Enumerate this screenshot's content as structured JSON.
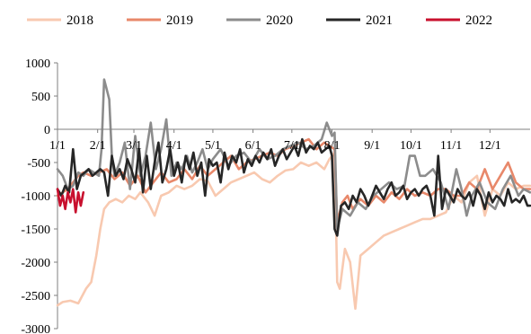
{
  "chart_data": {
    "type": "line",
    "title": "",
    "xlabel": "",
    "ylabel": "",
    "ylim": [
      -3000,
      1000
    ],
    "yticks": [
      1000,
      500,
      0,
      -500,
      -1000,
      -1500,
      -2000,
      -2500,
      -3000
    ],
    "xlim": [
      0,
      365
    ],
    "xticks": [
      {
        "day": 0,
        "label": "1/1"
      },
      {
        "day": 31,
        "label": "2/1"
      },
      {
        "day": 59,
        "label": "3/1"
      },
      {
        "day": 90,
        "label": "4/1"
      },
      {
        "day": 120,
        "label": "5/1"
      },
      {
        "day": 151,
        "label": "6/1"
      },
      {
        "day": 181,
        "label": "7/1"
      },
      {
        "day": 212,
        "label": "8/1"
      },
      {
        "day": 243,
        "label": "9/1"
      },
      {
        "day": 273,
        "label": "10/1"
      },
      {
        "day": 304,
        "label": "11/1"
      },
      {
        "day": 334,
        "label": "12/1"
      }
    ],
    "legend_position": "top",
    "grid": false,
    "x_unit": "day of year",
    "series": [
      {
        "name": "2018",
        "color": "#f8c9b0",
        "x": [
          0,
          4,
          10,
          16,
          22,
          26,
          30,
          33,
          36,
          40,
          45,
          50,
          55,
          60,
          64,
          70,
          75,
          80,
          86,
          92,
          98,
          104,
          110,
          116,
          122,
          128,
          134,
          140,
          146,
          152,
          158,
          164,
          170,
          176,
          182,
          188,
          194,
          200,
          206,
          210,
          214,
          216,
          218,
          222,
          226,
          230,
          234,
          240,
          246,
          252,
          258,
          264,
          270,
          276,
          282,
          288,
          294,
          300,
          306,
          312,
          318,
          324,
          330,
          336,
          342,
          348,
          354,
          360,
          365
        ],
        "y": [
          -2650,
          -2600,
          -2580,
          -2620,
          -2400,
          -2300,
          -1900,
          -1500,
          -1200,
          -1100,
          -1050,
          -1100,
          -1000,
          -1050,
          -950,
          -1100,
          -1300,
          -1000,
          -950,
          -850,
          -900,
          -850,
          -750,
          -780,
          -1000,
          -900,
          -800,
          -750,
          -700,
          -650,
          -750,
          -800,
          -700,
          -620,
          -600,
          -500,
          -550,
          -500,
          -600,
          -450,
          -350,
          -2300,
          -2400,
          -1800,
          -2000,
          -2700,
          -1900,
          -1800,
          -1700,
          -1600,
          -1550,
          -1500,
          -1450,
          -1400,
          -1350,
          -1350,
          -1300,
          -1250,
          -1000,
          -1100,
          -800,
          -700,
          -1300,
          -900,
          -1000,
          -800,
          -900,
          -850,
          -850
        ]
      },
      {
        "name": "2019",
        "color": "#e8886a",
        "x": [
          0,
          4,
          8,
          12,
          16,
          20,
          26,
          32,
          38,
          44,
          50,
          56,
          62,
          68,
          74,
          80,
          86,
          92,
          98,
          104,
          110,
          116,
          122,
          128,
          134,
          140,
          146,
          152,
          158,
          164,
          170,
          176,
          182,
          188,
          194,
          200,
          206,
          210,
          214,
          216,
          220,
          224,
          228,
          234,
          240,
          246,
          252,
          258,
          264,
          270,
          276,
          282,
          288,
          294,
          300,
          306,
          312,
          318,
          324,
          330,
          336,
          342,
          348,
          354,
          360,
          365
        ],
        "y": [
          -1000,
          -950,
          -900,
          -800,
          -700,
          -650,
          -700,
          -650,
          -600,
          -750,
          -650,
          -850,
          -700,
          -950,
          -800,
          -650,
          -800,
          -750,
          -600,
          -750,
          -550,
          -700,
          -600,
          -500,
          -400,
          -600,
          -500,
          -450,
          -400,
          -350,
          -400,
          -300,
          -250,
          -200,
          -150,
          -300,
          -200,
          -250,
          -300,
          -1400,
          -1100,
          -1000,
          -1200,
          -1050,
          -1150,
          -1000,
          -1100,
          -950,
          -1050,
          -900,
          -1000,
          -950,
          -1000,
          -900,
          -900,
          -1000,
          -1000,
          -800,
          -900,
          -600,
          -900,
          -700,
          -500,
          -800,
          -900,
          -900
        ]
      },
      {
        "name": "2020",
        "color": "#8c8c8c",
        "x": [
          0,
          4,
          8,
          12,
          16,
          20,
          24,
          28,
          32,
          34,
          36,
          38,
          40,
          42,
          44,
          48,
          52,
          56,
          60,
          64,
          68,
          72,
          76,
          80,
          84,
          88,
          92,
          96,
          100,
          104,
          108,
          112,
          116,
          120,
          126,
          132,
          138,
          144,
          150,
          156,
          162,
          168,
          174,
          180,
          186,
          192,
          198,
          204,
          208,
          212,
          214,
          216,
          220,
          226,
          232,
          238,
          244,
          250,
          256,
          262,
          268,
          272,
          276,
          280,
          284,
          290,
          296,
          302,
          308,
          312,
          316,
          320,
          326,
          332,
          338,
          344,
          350,
          356,
          360,
          365
        ],
        "y": [
          -600,
          -700,
          -900,
          -850,
          -650,
          -700,
          -600,
          -650,
          -700,
          -300,
          750,
          600,
          450,
          -400,
          -700,
          -500,
          -200,
          -900,
          -100,
          -700,
          -400,
          100,
          -600,
          -300,
          150,
          -700,
          -500,
          -600,
          -400,
          -650,
          -500,
          -300,
          -600,
          -450,
          -300,
          -550,
          -400,
          -350,
          -500,
          -300,
          -450,
          -400,
          -300,
          -250,
          -200,
          -300,
          -250,
          -150,
          100,
          -100,
          -50,
          -1500,
          -1200,
          -1300,
          -1100,
          -1200,
          -1000,
          -900,
          -800,
          -900,
          -850,
          -400,
          -400,
          -700,
          -700,
          -600,
          -800,
          -1200,
          -600,
          -900,
          -1300,
          -1000,
          -800,
          -1100,
          -1200,
          -900,
          -700,
          -1000,
          -900,
          -950
        ]
      },
      {
        "name": "2021",
        "color": "#262626",
        "x": [
          0,
          3,
          6,
          9,
          12,
          15,
          18,
          21,
          24,
          27,
          30,
          33,
          36,
          39,
          42,
          45,
          48,
          51,
          54,
          57,
          60,
          63,
          66,
          69,
          72,
          75,
          78,
          81,
          84,
          87,
          90,
          93,
          96,
          99,
          102,
          105,
          108,
          111,
          114,
          117,
          120,
          123,
          126,
          129,
          132,
          135,
          138,
          141,
          144,
          147,
          150,
          153,
          156,
          159,
          162,
          165,
          168,
          171,
          174,
          177,
          180,
          183,
          186,
          189,
          192,
          195,
          198,
          201,
          204,
          207,
          210,
          212,
          214,
          216,
          219,
          222,
          225,
          228,
          231,
          234,
          237,
          240,
          243,
          246,
          249,
          252,
          255,
          258,
          261,
          264,
          267,
          270,
          273,
          276,
          279,
          282,
          285,
          288,
          291,
          294,
          297,
          300,
          303,
          306,
          309,
          312,
          315,
          318,
          321,
          324,
          327,
          330,
          333,
          336,
          339,
          342,
          345,
          348,
          351,
          354,
          357,
          360,
          363,
          365
        ],
        "y": [
          -900,
          -1000,
          -850,
          -950,
          -300,
          -900,
          -700,
          -650,
          -600,
          -700,
          -650,
          -600,
          -650,
          -1000,
          -400,
          -700,
          -600,
          -750,
          -450,
          -600,
          -800,
          -300,
          -950,
          -400,
          -900,
          -500,
          -200,
          -800,
          -600,
          -300,
          -700,
          -500,
          -800,
          -400,
          -600,
          -350,
          -700,
          -500,
          -1000,
          -450,
          -550,
          -500,
          -800,
          -350,
          -600,
          -400,
          -500,
          -300,
          -650,
          -450,
          -550,
          -400,
          -500,
          -350,
          -450,
          -300,
          -550,
          -400,
          -300,
          -450,
          -350,
          -250,
          -400,
          -150,
          -350,
          -250,
          -300,
          -200,
          -350,
          -300,
          -250,
          -400,
          -1500,
          -1600,
          -1150,
          -1100,
          -1200,
          -1000,
          -1100,
          -900,
          -1000,
          -1150,
          -1000,
          -850,
          -950,
          -1050,
          -900,
          -800,
          -1000,
          -950,
          -850,
          -1050,
          -950,
          -900,
          -1000,
          -900,
          -850,
          -1000,
          -1300,
          -400,
          -1200,
          -900,
          -1000,
          -1100,
          -900,
          -1000,
          -1050,
          -950,
          -1150,
          -900,
          -1000,
          -1200,
          -950,
          -1100,
          -1000,
          -1050,
          -1150,
          -900,
          -1100,
          -1050,
          -1100,
          -1000,
          -1150,
          -1150
        ]
      },
      {
        "name": "2022",
        "color": "#c8102e",
        "x": [
          0,
          2,
          4,
          6,
          8,
          10,
          12,
          14,
          16,
          18,
          20
        ],
        "y": [
          -900,
          -1150,
          -1000,
          -1200,
          -950,
          -1100,
          -900,
          -1250,
          -950,
          -1150,
          -950
        ]
      }
    ]
  }
}
